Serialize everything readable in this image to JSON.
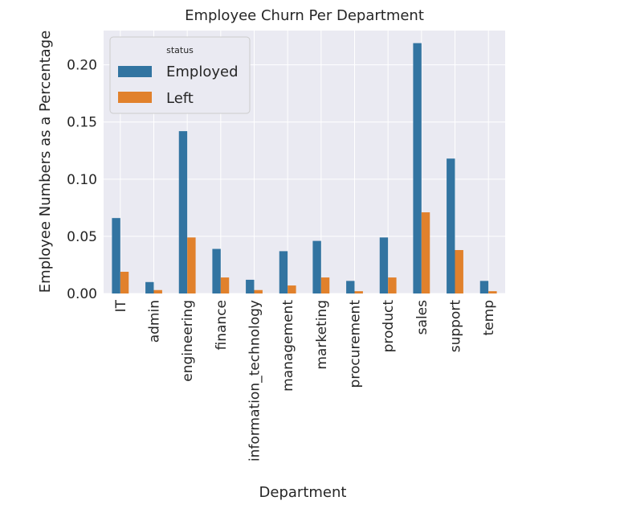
{
  "chart_data": {
    "type": "bar",
    "title": "Employee Churn Per Department",
    "xlabel": "Department",
    "ylabel": "Employee Numbers as a Percentage",
    "categories": [
      "IT",
      "admin",
      "engineering",
      "finance",
      "information_technology",
      "management",
      "marketing",
      "procurement",
      "product",
      "sales",
      "support",
      "temp"
    ],
    "series": [
      {
        "name": "Employed",
        "color": "#3274a1",
        "values": [
          0.066,
          0.01,
          0.142,
          0.039,
          0.012,
          0.037,
          0.046,
          0.011,
          0.049,
          0.219,
          0.118,
          0.011
        ]
      },
      {
        "name": "Left",
        "color": "#e1812c",
        "values": [
          0.019,
          0.003,
          0.049,
          0.014,
          0.003,
          0.007,
          0.014,
          0.002,
          0.014,
          0.071,
          0.038,
          0.002
        ]
      }
    ],
    "ylim": [
      0,
      0.23
    ],
    "yticks": [
      "0.00",
      "0.05",
      "0.10",
      "0.15",
      "0.20"
    ],
    "legend": {
      "title": "status",
      "placement": "top-left"
    },
    "grid": true
  }
}
